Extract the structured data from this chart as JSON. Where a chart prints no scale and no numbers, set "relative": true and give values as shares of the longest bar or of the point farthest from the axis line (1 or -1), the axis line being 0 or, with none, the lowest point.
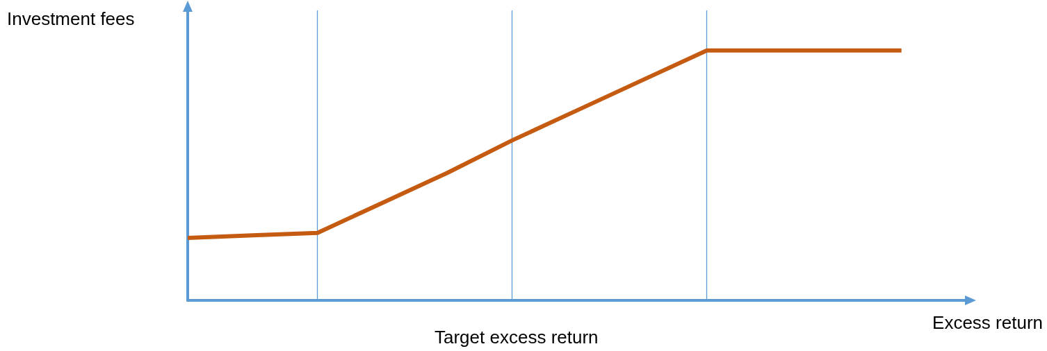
{
  "chart_data": {
    "type": "line",
    "relative": true,
    "ylabel": "Investment fees",
    "xlabel": "Excess return",
    "annotations": [
      "Target excess return"
    ],
    "categories": [
      null,
      null,
      null,
      null,
      null,
      null,
      null,
      null,
      null,
      null,
      null,
      null
    ],
    "series": [
      {
        "color": "#c55a11",
        "values": [
          0.25,
          0.26,
          0.27,
          0.39,
          0.51,
          0.64,
          0.76,
          0.88,
          1,
          1,
          1,
          1
        ]
      }
    ],
    "marker": "none",
    "line_style": "solid",
    "grid": "x"
  }
}
